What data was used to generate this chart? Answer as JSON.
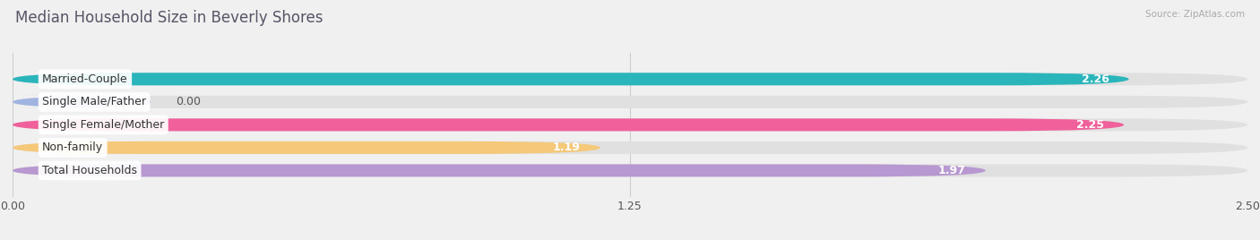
{
  "title": "Median Household Size in Beverly Shores",
  "source": "Source: ZipAtlas.com",
  "categories": [
    "Married-Couple",
    "Single Male/Father",
    "Single Female/Mother",
    "Non-family",
    "Total Households"
  ],
  "values": [
    2.26,
    0.0,
    2.25,
    1.19,
    1.97
  ],
  "bar_colors": [
    "#2ab5bb",
    "#a0b4e0",
    "#f0609a",
    "#f5c87a",
    "#b898d0"
  ],
  "value_colors": [
    "white",
    "black",
    "white",
    "black",
    "white"
  ],
  "xmax": 2.5,
  "xticks": [
    0.0,
    1.25,
    2.5
  ],
  "xtick_labels": [
    "0.00",
    "1.25",
    "2.50"
  ],
  "bg_color": "#f0f0f0",
  "bar_bg_color": "#e0e0e0",
  "title_color": "#555566",
  "source_color": "#aaaaaa",
  "title_fontsize": 12,
  "bar_height": 0.55,
  "bar_spacing": 1.0,
  "bar_label_fontsize": 9,
  "category_fontsize": 9,
  "single_male_bar_width": 0.28
}
